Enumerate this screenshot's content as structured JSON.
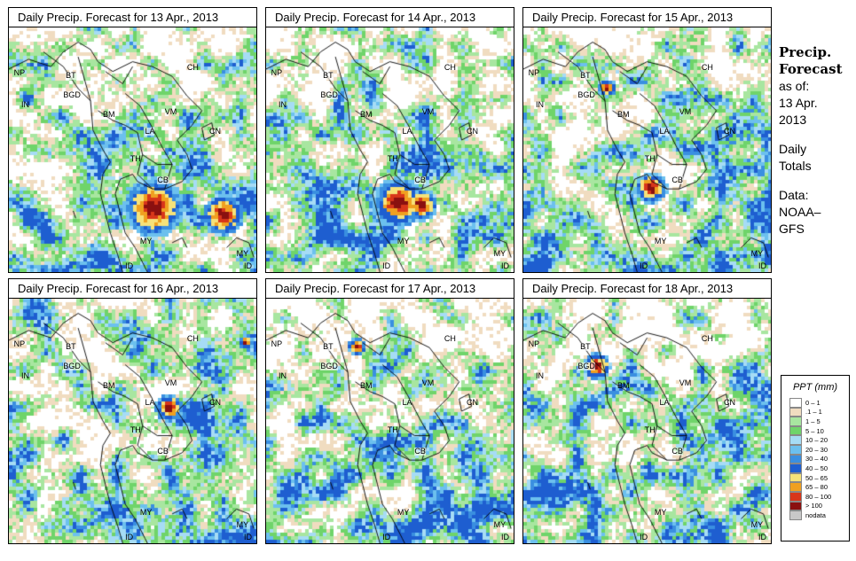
{
  "panels": [
    {
      "title": "Daily Precip. Forecast for  13 Apr., 2013",
      "seed": 11,
      "hot": [
        [
          0.58,
          0.73,
          0.13
        ],
        [
          0.86,
          0.76,
          0.09
        ]
      ]
    },
    {
      "title": "Daily Precip. Forecast for  14 Apr., 2013",
      "seed": 23,
      "hot": [
        [
          0.53,
          0.71,
          0.11
        ],
        [
          0.62,
          0.72,
          0.07
        ]
      ]
    },
    {
      "title": "Daily Precip. Forecast for  15 Apr., 2013",
      "seed": 37,
      "hot": [
        [
          0.51,
          0.65,
          0.07
        ],
        [
          0.33,
          0.24,
          0.04
        ]
      ]
    },
    {
      "title": "Daily Precip. Forecast for  16 Apr., 2013",
      "seed": 41,
      "hot": [
        [
          0.64,
          0.44,
          0.06
        ],
        [
          0.95,
          0.17,
          0.03
        ]
      ]
    },
    {
      "title": "Daily Precip. Forecast for  17 Apr., 2013",
      "seed": 53,
      "hot": [
        [
          0.36,
          0.19,
          0.04
        ]
      ]
    },
    {
      "title": "Daily Precip. Forecast for  18 Apr., 2013",
      "seed": 67,
      "hot": [
        [
          0.29,
          0.27,
          0.06
        ]
      ]
    }
  ],
  "country_labels": {
    "np": "NP",
    "bt": "BT",
    "bd": "BGD",
    "in": "IN",
    "ch": "CH",
    "bm": "BM",
    "vm": "VM",
    "la": "LA",
    "cn": "CN",
    "th": "TH",
    "cb": "CB",
    "my": "MY",
    "my2": "MY",
    "id": "ID",
    "id2": "ID"
  },
  "side": {
    "head1": "Precip.",
    "head2": "Forecast",
    "line1": "as of:",
    "line2": "13 Apr.",
    "line3": "2013",
    "line4": "Daily",
    "line5": "Totals",
    "line6": "Data:",
    "line7": "NOAA–",
    "line8": "GFS"
  },
  "legend": {
    "title": "PPT (mm)",
    "rows": [
      {
        "label": "0 – 1",
        "color": "#ffffff"
      },
      {
        "label": ".1 – 1",
        "color": "#f0dcc0"
      },
      {
        "label": "1 – 5",
        "color": "#a8e6a0"
      },
      {
        "label": "5 – 10",
        "color": "#6fd46a"
      },
      {
        "label": "10 – 20",
        "color": "#a6dcf5"
      },
      {
        "label": "20 – 30",
        "color": "#6cc0ee"
      },
      {
        "label": "30 – 40",
        "color": "#3a8fe0"
      },
      {
        "label": "40 – 50",
        "color": "#1e5ed0"
      },
      {
        "label": "50 – 65",
        "color": "#f6e27a"
      },
      {
        "label": "65 – 80",
        "color": "#f0a020"
      },
      {
        "label": "80 – 100",
        "color": "#d8361a"
      },
      {
        "label": "> 100",
        "color": "#8a1010"
      },
      {
        "label": "nodata",
        "color": "#c8c8c8"
      }
    ]
  }
}
